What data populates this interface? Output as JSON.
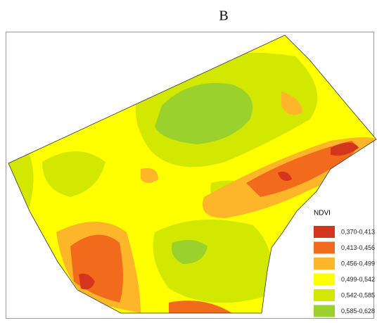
{
  "title": "B",
  "legend": {
    "title": "NDVI",
    "items": [
      {
        "label": "0,370-0,413",
        "color": "#d3361c"
      },
      {
        "label": "0,413-0,456",
        "color": "#f26b1d"
      },
      {
        "label": "0,456-0,499",
        "color": "#fdb52a"
      },
      {
        "label": "0,499-0,542",
        "color": "#ffff00"
      },
      {
        "label": "0,542-0,585",
        "color": "#d2e800"
      },
      {
        "label": "0,585-0,628",
        "color": "#9ad12c"
      }
    ]
  }
}
